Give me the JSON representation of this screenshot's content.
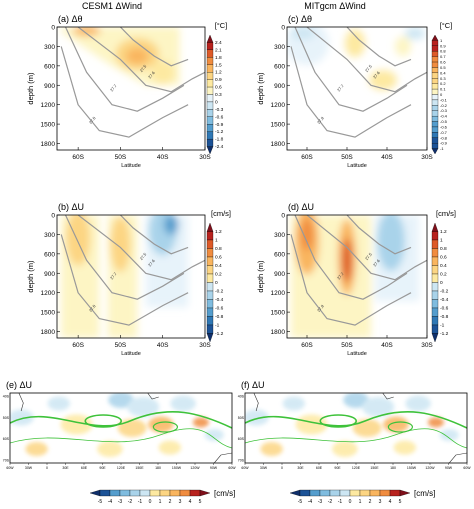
{
  "figure": {
    "columns": [
      "CESM1 ΔWind",
      "MITgcm ΔWind"
    ]
  },
  "panels_top": [
    {
      "id": "a",
      "label": "(a) Δθ",
      "unit": "[°C]",
      "xlabel": "Latitude",
      "ylabel": "depth (m)",
      "xticks": [
        "60S",
        "50S",
        "40S",
        "30S"
      ],
      "yticks": [
        "0",
        "300",
        "600",
        "900",
        "1200",
        "1500",
        "1800"
      ],
      "cbar": [
        "2.4",
        "2.1",
        "1.8",
        "1.5",
        "1.2",
        "0.9",
        "0.6",
        "0.3",
        "0",
        "-0.3",
        "-0.6",
        "-0.9",
        "-1.2",
        "-1.8",
        "-2.4"
      ],
      "contour_labels": [
        "27.5",
        "27.6",
        "27.7",
        "27.8"
      ]
    },
    {
      "id": "c",
      "label": "(c) Δθ",
      "unit": "[°C]",
      "xlabel": "Latitude",
      "ylabel": "depth (m)",
      "xticks": [
        "60S",
        "50S",
        "40S",
        "30S"
      ],
      "yticks": [
        "0",
        "300",
        "600",
        "900",
        "1200",
        "1500",
        "1800"
      ],
      "cbar": [
        "1",
        "0.9",
        "0.8",
        "0.7",
        "0.6",
        "0.5",
        "0.4",
        "0.3",
        "0.2",
        "0.1",
        "0",
        "-0.1",
        "-0.2",
        "-0.3",
        "-0.4",
        "-0.5",
        "-0.6",
        "-0.7",
        "-0.8",
        "-0.9",
        "-1"
      ],
      "contour_labels": [
        "27.5",
        "27.6",
        "27.7",
        "27.8"
      ]
    },
    {
      "id": "b",
      "label": "(b) ΔU",
      "unit": "[cm/s]",
      "xlabel": "Latitude",
      "ylabel": "depth (m)",
      "xticks": [
        "60S",
        "50S",
        "40S",
        "30S"
      ],
      "yticks": [
        "0",
        "300",
        "600",
        "900",
        "1200",
        "1500",
        "1800"
      ],
      "cbar": [
        "1.2",
        "1",
        "0.8",
        "0.6",
        "0.4",
        "0.2",
        "0",
        "-0.2",
        "-0.4",
        "-0.6",
        "-0.8",
        "-1",
        "-1.2"
      ],
      "contour_labels": [
        "27.5",
        "27.6",
        "27.7",
        "27.8"
      ]
    },
    {
      "id": "d",
      "label": "(d) ΔU",
      "unit": "[cm/s]",
      "xlabel": "Latitude",
      "ylabel": "depth (m)",
      "xticks": [
        "60S",
        "50S",
        "40S",
        "30S"
      ],
      "yticks": [
        "0",
        "300",
        "600",
        "900",
        "1200",
        "1500",
        "1800"
      ],
      "cbar": [
        "1.2",
        "1",
        "0.8",
        "0.6",
        "0.4",
        "0.2",
        "0",
        "-0.2",
        "-0.4",
        "-0.6",
        "-0.8",
        "-1",
        "-1.2"
      ],
      "contour_labels": [
        "27.5",
        "27.6",
        "27.7",
        "27.8"
      ]
    }
  ],
  "panels_map": [
    {
      "id": "e",
      "label": "(e) ΔU",
      "lon_ticks": [
        "60W",
        "30W",
        "0",
        "30E",
        "60E",
        "90E",
        "120E",
        "150E",
        "180",
        "150W",
        "120W",
        "90W",
        "60W"
      ],
      "lat_ticks": [
        "40S",
        "50S",
        "60S",
        "70S"
      ]
    },
    {
      "id": "f",
      "label": "(f) ΔU",
      "lon_ticks": [
        "60W",
        "30W",
        "0",
        "30E",
        "60E",
        "90E",
        "120E",
        "150E",
        "180",
        "150W",
        "120W",
        "90W",
        "60W"
      ],
      "lat_ticks": [
        "40S",
        "50S",
        "60S",
        "70S"
      ]
    }
  ],
  "map_colorbar": {
    "labels": [
      "-5",
      "-4",
      "-3",
      "-2",
      "-1",
      "0",
      "1",
      "2",
      "3",
      "4",
      "5"
    ],
    "unit": "[cm/s]"
  },
  "colors": {
    "warm": [
      "#fdf5c4",
      "#fde9a1",
      "#fcd583",
      "#f9b55f",
      "#f08c3f",
      "#dd5a28",
      "#b8221e",
      "#7f0f1a"
    ],
    "cool": [
      "#e7f3fa",
      "#cde6f3",
      "#a9d3ea",
      "#7fbcdf",
      "#549dcd",
      "#2f78b5",
      "#1c5397",
      "#0f2f6b"
    ],
    "contour_grey": "#999999",
    "contour_green": "#3ec23a"
  },
  "chart_data": [
    {
      "type": "heatmap",
      "panel": "a",
      "field": "Δθ",
      "units": "°C",
      "x": "latitude 65S–30S",
      "ylim": [
        0,
        1900
      ],
      "features": [
        {
          "kind": "warm",
          "lat": 47,
          "depth": 450,
          "value": 1.2
        },
        {
          "kind": "warm",
          "lat": 60,
          "depth": 50,
          "value": 0.6
        },
        {
          "kind": "warm",
          "lat": 40,
          "depth": 700,
          "value": 0.5
        }
      ]
    },
    {
      "type": "heatmap",
      "panel": "c",
      "field": "Δθ",
      "units": "°C",
      "x": "latitude 65S–30S",
      "ylim": [
        0,
        1900
      ],
      "features": [
        {
          "kind": "cool",
          "lat": 62,
          "depth": 150,
          "value": -0.3
        },
        {
          "kind": "warm",
          "lat": 48,
          "depth": 250,
          "value": 0.3
        },
        {
          "kind": "warm",
          "lat": 41,
          "depth": 800,
          "value": 0.3
        }
      ]
    },
    {
      "type": "heatmap",
      "panel": "b",
      "field": "ΔU",
      "units": "cm/s",
      "x": "latitude 65S–30S",
      "ylim": [
        0,
        1900
      ],
      "features": [
        {
          "kind": "warm",
          "lat": 60,
          "depth": 400,
          "value": 0.8
        },
        {
          "kind": "warm",
          "lat": 50,
          "depth": 500,
          "value": 0.6
        },
        {
          "kind": "cool",
          "lat": 40,
          "depth": 300,
          "value": -0.8
        }
      ]
    },
    {
      "type": "heatmap",
      "panel": "d",
      "field": "ΔU",
      "units": "cm/s",
      "x": "latitude 65S–30S",
      "ylim": [
        0,
        1900
      ],
      "features": [
        {
          "kind": "warm",
          "lat": 60,
          "depth": 400,
          "value": 1.0
        },
        {
          "kind": "warm",
          "lat": 50,
          "depth": 700,
          "value": 1.0
        },
        {
          "kind": "cool",
          "lat": 39,
          "depth": 400,
          "value": -0.8
        }
      ]
    }
  ]
}
